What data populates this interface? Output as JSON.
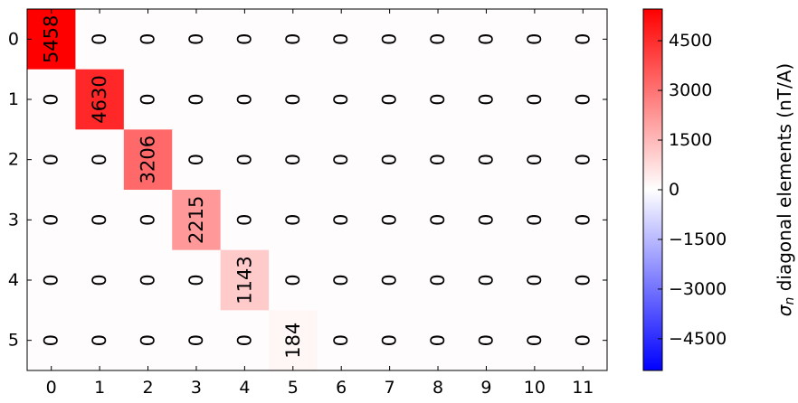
{
  "chart_data": {
    "type": "heatmap",
    "x_categories": [
      "0",
      "1",
      "2",
      "3",
      "4",
      "5",
      "6",
      "7",
      "8",
      "9",
      "10",
      "11"
    ],
    "y_categories": [
      "0",
      "1",
      "2",
      "3",
      "4",
      "5"
    ],
    "values": [
      [
        5458,
        0,
        0,
        0,
        0,
        0,
        0,
        0,
        0,
        0,
        0,
        0
      ],
      [
        0,
        4630,
        0,
        0,
        0,
        0,
        0,
        0,
        0,
        0,
        0,
        0
      ],
      [
        0,
        0,
        3206,
        0,
        0,
        0,
        0,
        0,
        0,
        0,
        0,
        0
      ],
      [
        0,
        0,
        0,
        2215,
        0,
        0,
        0,
        0,
        0,
        0,
        0,
        0
      ],
      [
        0,
        0,
        0,
        0,
        1143,
        0,
        0,
        0,
        0,
        0,
        0,
        0
      ],
      [
        0,
        0,
        0,
        0,
        0,
        184,
        0,
        0,
        0,
        0,
        0,
        0
      ]
    ],
    "colormap": "bwr",
    "zero_color": "#fefcfc",
    "vmin": -5458,
    "vmax": 5458,
    "colorbar": {
      "ticks": [
        "4500",
        "3000",
        "1500",
        "0",
        "−1500",
        "−3000",
        "−4500"
      ],
      "tick_values": [
        4500,
        3000,
        1500,
        0,
        -1500,
        -3000,
        -4500
      ],
      "label_symbol": "σ",
      "label_subscript": "n",
      "label_text": " diagonal elements  (nT/A)"
    },
    "title": "",
    "xlabel": "",
    "ylabel": ""
  }
}
